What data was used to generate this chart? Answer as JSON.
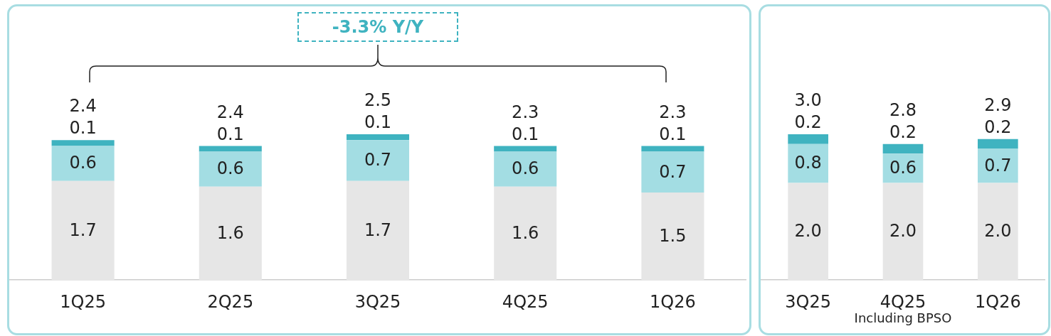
{
  "chart_data": [
    {
      "type": "bar",
      "stacked": true,
      "categories": [
        "1Q25",
        "2Q25",
        "3Q25",
        "4Q25",
        "1Q26"
      ],
      "series": [
        {
          "color": "#e6e6e6",
          "values": [
            1.7,
            1.6,
            1.7,
            1.6,
            1.5
          ]
        },
        {
          "color": "#a3dde3",
          "values": [
            0.6,
            0.6,
            0.7,
            0.6,
            0.7
          ]
        },
        {
          "color": "#3fb3c0",
          "values": [
            0.1,
            0.1,
            0.1,
            0.1,
            0.1
          ]
        }
      ],
      "data_labels": true,
      "totals": [
        "2.4",
        "2.4",
        "2.5",
        "2.3",
        "2.3"
      ],
      "legend": false,
      "grid": false,
      "annotations": [
        "-3.3% Y/Y"
      ]
    },
    {
      "type": "bar",
      "stacked": true,
      "categories": [
        "3Q25",
        "4Q25",
        "1Q26"
      ],
      "series": [
        {
          "color": "#e6e6e6",
          "values": [
            2.0,
            2.0,
            2.0
          ],
          "value_labels": [
            "2.0",
            "2.0",
            "2.0"
          ]
        },
        {
          "color": "#a3dde3",
          "values": [
            0.8,
            0.6,
            0.7
          ]
        },
        {
          "color": "#3fb3c0",
          "values": [
            0.2,
            0.2,
            0.2
          ]
        }
      ],
      "data_labels": true,
      "totals": [
        "3.0",
        "2.8",
        "2.9"
      ],
      "legend": false,
      "grid": false,
      "annotations": [
        "Including BPSO"
      ]
    }
  ]
}
